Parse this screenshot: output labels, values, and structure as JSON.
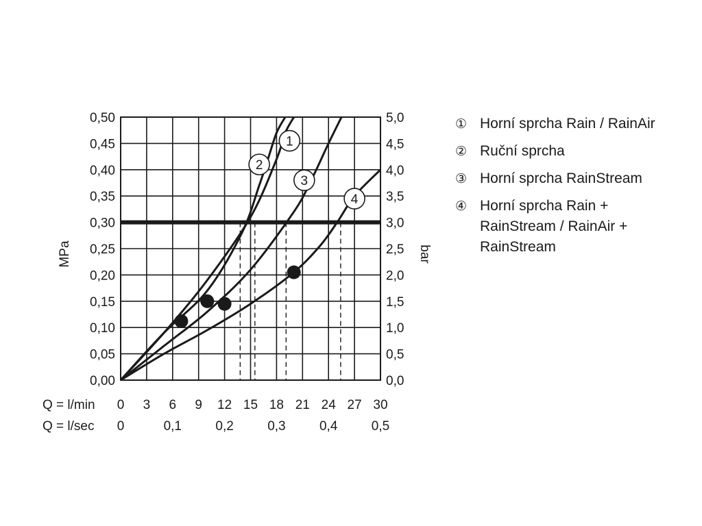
{
  "chart_data": {
    "type": "line",
    "y_left": {
      "label": "MPa",
      "min": 0,
      "max": 0.5,
      "step": 0.05,
      "ticks": [
        "0,00",
        "0,05",
        "0,10",
        "0,15",
        "0,20",
        "0,25",
        "0,30",
        "0,35",
        "0,40",
        "0,45",
        "0,50"
      ]
    },
    "y_right": {
      "label": "bar",
      "min": 0,
      "max": 5,
      "step": 0.5,
      "ticks": [
        "0,0",
        "0,5",
        "1,0",
        "1,5",
        "2,0",
        "2,5",
        "3,0",
        "3,5",
        "4,0",
        "4,5",
        "5,0"
      ]
    },
    "x_primary": {
      "label": "Q = l/min",
      "min": 0,
      "max": 30,
      "step": 3,
      "ticks": [
        "0",
        "3",
        "6",
        "9",
        "12",
        "15",
        "18",
        "21",
        "24",
        "27",
        "30"
      ]
    },
    "x_secondary": {
      "label": "Q = l/sec",
      "ticks": [
        {
          "label": "0",
          "lmin": 0
        },
        {
          "label": "0,1",
          "lmin": 6
        },
        {
          "label": "0,2",
          "lmin": 12
        },
        {
          "label": "0,3",
          "lmin": 18
        },
        {
          "label": "0,4",
          "lmin": 24
        },
        {
          "label": "0,5",
          "lmin": 30
        }
      ]
    },
    "reference_line": {
      "y": 0.3
    },
    "grid": true,
    "series": [
      {
        "name": "1",
        "points": [
          [
            0,
            0
          ],
          [
            5,
            0.09
          ],
          [
            10,
            0.19
          ],
          [
            15,
            0.31
          ],
          [
            18,
            0.42
          ],
          [
            19,
            0.47
          ],
          [
            20,
            0.5
          ]
        ],
        "marker": {
          "x": 10,
          "y": 0.15
        },
        "dashed_x": 15.5,
        "label_at": {
          "x": 19.5,
          "y": 0.455
        }
      },
      {
        "name": "2",
        "points": [
          [
            0,
            0
          ],
          [
            5,
            0.09
          ],
          [
            10,
            0.17
          ],
          [
            14,
            0.28
          ],
          [
            16,
            0.37
          ],
          [
            17,
            0.42
          ],
          [
            18,
            0.47
          ],
          [
            19,
            0.5
          ]
        ],
        "marker": {
          "x": 7,
          "y": 0.112
        },
        "dashed_x": 13.8,
        "label_at": {
          "x": 16,
          "y": 0.41
        }
      },
      {
        "name": "3",
        "points": [
          [
            0,
            0
          ],
          [
            5,
            0.065
          ],
          [
            10,
            0.13
          ],
          [
            15,
            0.21
          ],
          [
            20,
            0.32
          ],
          [
            22,
            0.38
          ],
          [
            24,
            0.45
          ],
          [
            25.5,
            0.5
          ]
        ],
        "marker": {
          "x": 12,
          "y": 0.145
        },
        "dashed_x": 19.1,
        "label_at": {
          "x": 21.2,
          "y": 0.38
        }
      },
      {
        "name": "4",
        "points": [
          [
            0,
            0
          ],
          [
            5,
            0.05
          ],
          [
            10,
            0.095
          ],
          [
            15,
            0.145
          ],
          [
            20,
            0.205
          ],
          [
            23,
            0.255
          ],
          [
            25,
            0.3
          ],
          [
            27,
            0.35
          ],
          [
            30,
            0.4
          ]
        ],
        "marker": {
          "x": 20,
          "y": 0.205
        },
        "dashed_x": 25.4,
        "label_at": {
          "x": 27,
          "y": 0.345
        }
      }
    ]
  },
  "legend": [
    {
      "num": "①",
      "text": "Horní sprcha Rain / RainAir"
    },
    {
      "num": "②",
      "text": "Ruční sprcha"
    },
    {
      "num": "③",
      "text": "Horní sprcha RainStream"
    },
    {
      "num": "④",
      "text": "Horní sprcha Rain + RainStream / RainAir + RainStream"
    }
  ]
}
